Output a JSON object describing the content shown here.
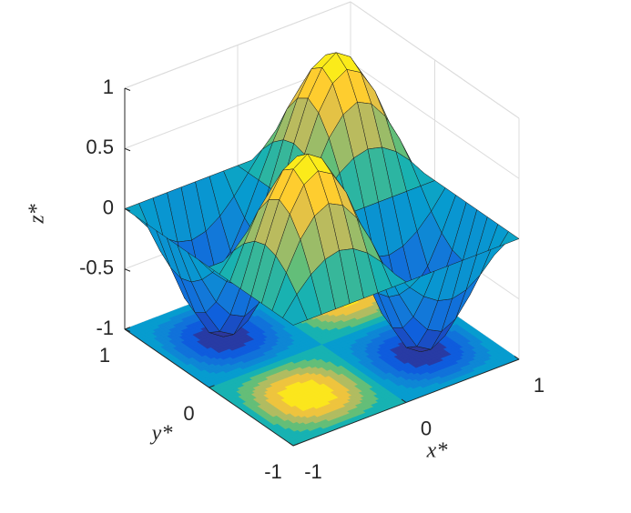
{
  "chart_data": {
    "type": "surface-contour",
    "xlabel": "x*",
    "ylabel": "y*",
    "zlabel": "z*",
    "x": [
      -1,
      -0.875,
      -0.75,
      -0.625,
      -0.5,
      -0.375,
      -0.25,
      -0.125,
      0,
      0.125,
      0.25,
      0.375,
      0.5,
      0.625,
      0.75,
      0.875,
      1
    ],
    "y": [
      -1,
      -0.875,
      -0.75,
      -0.625,
      -0.5,
      -0.375,
      -0.25,
      -0.125,
      0,
      0.125,
      0.25,
      0.375,
      0.5,
      0.625,
      0.75,
      0.875,
      1
    ],
    "z": [
      [
        0,
        0,
        0,
        0,
        0,
        0,
        0,
        0,
        0,
        0,
        0,
        0,
        0,
        0,
        0,
        0,
        0
      ],
      [
        0,
        0.15,
        0.27,
        0.35,
        0.38,
        0.35,
        0.27,
        0.15,
        0,
        -0.15,
        -0.27,
        -0.35,
        -0.38,
        -0.35,
        -0.27,
        -0.15,
        0
      ],
      [
        0,
        0.27,
        0.5,
        0.65,
        0.71,
        0.65,
        0.5,
        0.27,
        0,
        -0.27,
        -0.5,
        -0.65,
        -0.71,
        -0.65,
        -0.5,
        -0.27,
        0
      ],
      [
        0,
        0.35,
        0.65,
        0.85,
        0.92,
        0.85,
        0.65,
        0.35,
        0,
        -0.35,
        -0.65,
        -0.85,
        -0.92,
        -0.85,
        -0.65,
        -0.35,
        0
      ],
      [
        0,
        0.38,
        0.71,
        0.92,
        1,
        0.92,
        0.71,
        0.38,
        0,
        -0.38,
        -0.71,
        -0.92,
        -1,
        -0.92,
        -0.71,
        -0.38,
        0
      ],
      [
        0,
        0.35,
        0.65,
        0.85,
        0.92,
        0.85,
        0.65,
        0.35,
        0,
        -0.35,
        -0.65,
        -0.85,
        -0.92,
        -0.85,
        -0.65,
        -0.35,
        0
      ],
      [
        0,
        0.27,
        0.5,
        0.65,
        0.71,
        0.65,
        0.5,
        0.27,
        0,
        -0.27,
        -0.5,
        -0.65,
        -0.71,
        -0.65,
        -0.5,
        -0.27,
        0
      ],
      [
        0,
        0.15,
        0.27,
        0.35,
        0.38,
        0.35,
        0.27,
        0.15,
        0,
        -0.15,
        -0.27,
        -0.35,
        -0.38,
        -0.35,
        -0.27,
        -0.15,
        0
      ],
      [
        0,
        0,
        0,
        0,
        0,
        0,
        0,
        0,
        0,
        0,
        0,
        0,
        0,
        0,
        0,
        0,
        0
      ],
      [
        0,
        -0.15,
        -0.27,
        -0.35,
        -0.38,
        -0.35,
        -0.27,
        -0.15,
        0,
        0.15,
        0.27,
        0.35,
        0.38,
        0.35,
        0.27,
        0.15,
        0
      ],
      [
        0,
        -0.27,
        -0.5,
        -0.65,
        -0.71,
        -0.65,
        -0.5,
        -0.27,
        0,
        0.27,
        0.5,
        0.65,
        0.71,
        0.65,
        0.5,
        0.27,
        0
      ],
      [
        0,
        -0.35,
        -0.65,
        -0.85,
        -0.92,
        -0.85,
        -0.65,
        -0.35,
        0,
        0.35,
        0.65,
        0.85,
        0.92,
        0.85,
        0.65,
        0.35,
        0
      ],
      [
        0,
        -0.38,
        -0.71,
        -0.92,
        -1,
        -0.92,
        -0.71,
        -0.38,
        0,
        0.38,
        0.71,
        0.92,
        1,
        0.92,
        0.71,
        0.38,
        0
      ],
      [
        0,
        -0.35,
        -0.65,
        -0.85,
        -0.92,
        -0.85,
        -0.65,
        -0.35,
        0,
        0.35,
        0.65,
        0.85,
        0.92,
        0.85,
        0.65,
        0.35,
        0
      ],
      [
        0,
        -0.27,
        -0.5,
        -0.65,
        -0.71,
        -0.65,
        -0.5,
        -0.27,
        0,
        0.27,
        0.5,
        0.65,
        0.71,
        0.65,
        0.5,
        0.27,
        0
      ],
      [
        0,
        -0.15,
        -0.27,
        -0.35,
        -0.38,
        -0.35,
        -0.27,
        -0.15,
        0,
        0.15,
        0.27,
        0.35,
        0.38,
        0.35,
        0.27,
        0.15,
        0
      ],
      [
        0,
        0,
        0,
        0,
        0,
        0,
        0,
        0,
        0,
        0,
        0,
        0,
        0,
        0,
        0,
        0,
        0
      ]
    ],
    "xlim": [
      -1,
      1
    ],
    "ylim": [
      -1,
      1
    ],
    "zlim": [
      -1,
      1
    ],
    "xticks": [
      -1,
      0,
      1
    ],
    "yticks": [
      -1,
      0,
      1
    ],
    "zticks": [
      -1,
      -0.5,
      0,
      0.5,
      1
    ],
    "grid": true,
    "colormap": "parula"
  }
}
